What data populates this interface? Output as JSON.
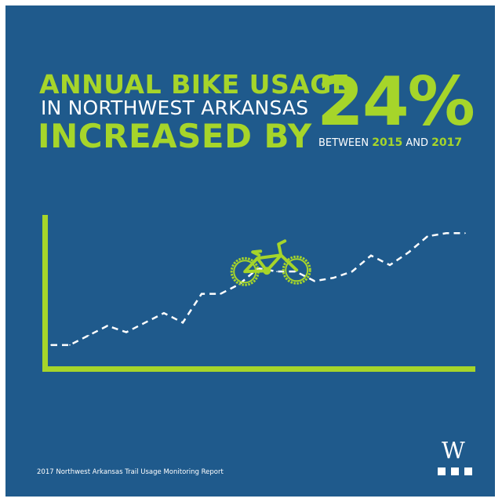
{
  "headline": {
    "line1": "ANNUAL BIKE USAGE",
    "line2": "IN NORTHWEST ARKANSAS",
    "line3": "INCREASED BY",
    "big_value": "24%",
    "between_prefix": "BETWEEN",
    "year_start": "2015",
    "and_word": "AND",
    "year_end": "2017"
  },
  "source": "2017 Northwest Arkansas Trail Usage Monitoring Report",
  "logo": {
    "letter": "W"
  },
  "colors": {
    "background": "#1f5a8c",
    "accent": "#a6d52a",
    "text": "#ffffff"
  },
  "chart_data": {
    "type": "line",
    "title": "",
    "xlabel": "",
    "ylabel": "",
    "grid": false,
    "legend": "none",
    "line_style": "dashed",
    "icons": [
      "bicycle-icon"
    ],
    "x": [
      0,
      1,
      2,
      3,
      4,
      5,
      6,
      7,
      8,
      9,
      10,
      11,
      12,
      13,
      14,
      15,
      16,
      17,
      18,
      19,
      20,
      21,
      22
    ],
    "values": [
      1,
      1,
      4,
      7,
      5,
      8,
      11,
      8,
      17,
      17,
      20,
      25,
      24,
      24,
      21,
      22,
      24,
      29,
      26,
      30,
      35,
      36,
      36
    ],
    "xlim": [
      0,
      22
    ],
    "ylim": [
      -1,
      52
    ]
  }
}
